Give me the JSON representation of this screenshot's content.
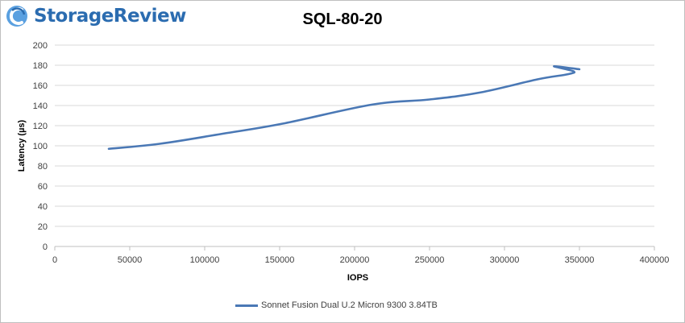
{
  "brand": {
    "name": "StorageReview"
  },
  "chart_data": {
    "type": "line",
    "title": "SQL-80-20",
    "xlabel": "IOPS",
    "ylabel": "Latency (µs)",
    "xlim": [
      0,
      400000
    ],
    "ylim": [
      0,
      200
    ],
    "xticks": [
      0,
      50000,
      100000,
      150000,
      200000,
      250000,
      300000,
      350000,
      400000
    ],
    "yticks": [
      0,
      20,
      40,
      60,
      80,
      100,
      120,
      140,
      160,
      180,
      200
    ],
    "grid": "horizontal",
    "legend_position": "bottom",
    "series": [
      {
        "name": "Sonnet Fusion Dual U.2 Micron 9300 3.84TB",
        "color": "#4a78b5",
        "points": [
          [
            36000,
            97
          ],
          [
            70000,
            102
          ],
          [
            112000,
            112
          ],
          [
            152000,
            122
          ],
          [
            212000,
            141
          ],
          [
            250000,
            146
          ],
          [
            284000,
            153
          ],
          [
            322000,
            166
          ],
          [
            342000,
            171
          ],
          [
            346000,
            174
          ],
          [
            333000,
            179
          ],
          [
            350000,
            176
          ]
        ]
      }
    ]
  }
}
